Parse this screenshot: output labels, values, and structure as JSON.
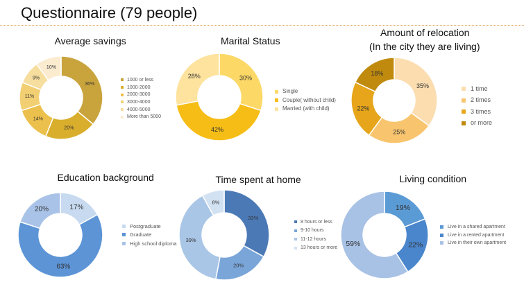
{
  "page": {
    "title": "Questionnaire (79 people)"
  },
  "chart_data": [
    {
      "id": "savings",
      "type": "pie",
      "title": "Average savings",
      "categories": [
        "1000 or less",
        "1000-2000",
        "2000-3000",
        "3000-4000",
        "4000-5000",
        "More than 5000"
      ],
      "values": [
        36,
        20,
        14,
        11,
        9,
        10
      ],
      "labels": [
        "36%",
        "20%",
        "14%",
        "11%",
        "9%",
        "10%"
      ],
      "colors": [
        "#c9a43c",
        "#d9ae2c",
        "#ecc04c",
        "#f2cf72",
        "#f6de9e",
        "#fbecd0"
      ],
      "legend": "right",
      "style": "donut"
    },
    {
      "id": "marital",
      "type": "pie",
      "title": "Marital Status",
      "categories": [
        "Single",
        "Couple( without child)",
        "Married (with child)"
      ],
      "values": [
        30,
        42,
        28
      ],
      "labels": [
        "30%",
        "42%",
        "28%"
      ],
      "colors": [
        "#fcd866",
        "#f6bd16",
        "#fde39e"
      ],
      "legend": "right",
      "style": "donut"
    },
    {
      "id": "relocation",
      "type": "pie",
      "title": "Amount of relocation",
      "subtitle": "(In the city they are living)",
      "categories": [
        "1 time",
        "2 times",
        "3 times",
        "or more"
      ],
      "values": [
        35,
        25,
        22,
        18
      ],
      "labels": [
        "35%",
        "25%",
        "22%",
        "18%"
      ],
      "colors": [
        "#fbddb0",
        "#f8c56e",
        "#e6a51a",
        "#c08a0e"
      ],
      "legend": "right",
      "style": "donut"
    },
    {
      "id": "education",
      "type": "pie",
      "title": "Education background",
      "categories": [
        "Postgraduate",
        "Graduate",
        "High school diploma"
      ],
      "values": [
        17,
        63,
        20
      ],
      "labels": [
        "17%",
        "63%",
        "20%"
      ],
      "colors": [
        "#c7daf0",
        "#5c94d6",
        "#a9c3e8"
      ],
      "legend": "right",
      "style": "donut"
    },
    {
      "id": "home_time",
      "type": "pie",
      "title": "Time spent at home",
      "categories": [
        "8 hours or less",
        "9-10 hours",
        "11-12 hours",
        "13 hours or more"
      ],
      "values": [
        33,
        20,
        39,
        8
      ],
      "labels": [
        "33%",
        "20%",
        "39%",
        "8%"
      ],
      "colors": [
        "#4b79b5",
        "#7aa5d8",
        "#a9c6e6",
        "#d3e2f2"
      ],
      "legend": "right",
      "style": "donut"
    },
    {
      "id": "living",
      "type": "pie",
      "title": "Living condition",
      "categories": [
        "Live in a shared apartment",
        "Live in a rented apartment",
        "Live in their own apartment"
      ],
      "values": [
        19,
        22,
        59
      ],
      "labels": [
        "19%",
        "22%",
        "59%"
      ],
      "colors": [
        "#5b9bd5",
        "#4a86cc",
        "#a8c2e6"
      ],
      "legend": "right",
      "style": "donut"
    }
  ]
}
